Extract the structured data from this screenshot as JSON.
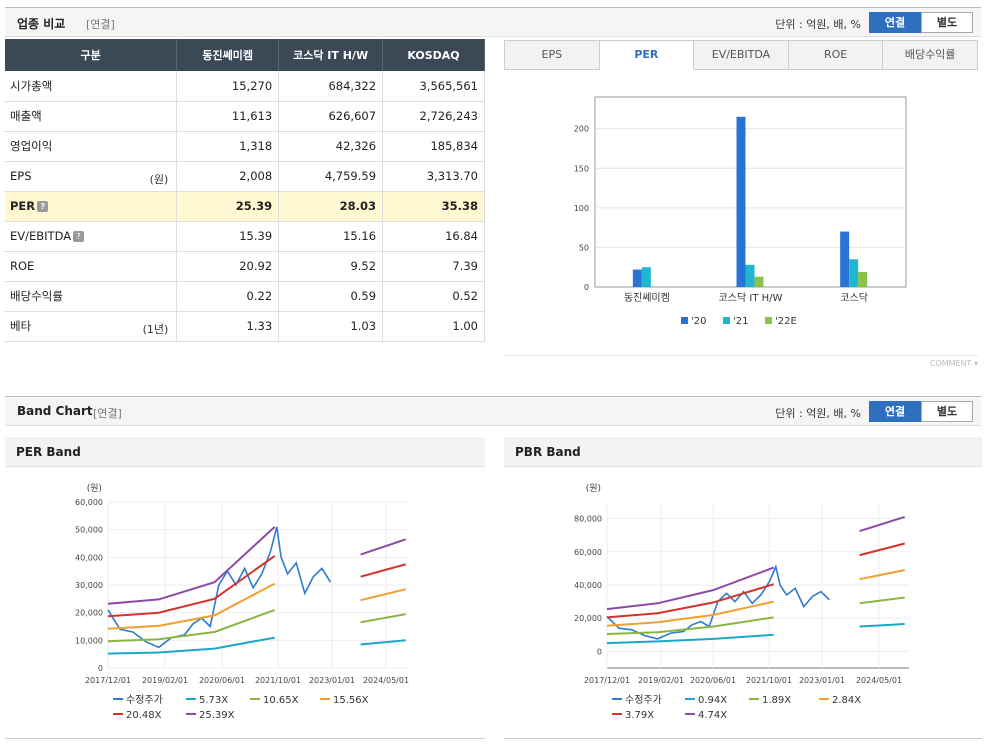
{
  "top": {
    "title": "업종 비교",
    "subtitle": "[연결]",
    "unit": "단위 : 억원, 배, %",
    "toggle": [
      "연결",
      "별도"
    ]
  },
  "table": {
    "headers": [
      "구분",
      "동진쎄미켐",
      "코스닥 IT H/W",
      "KOSDAQ"
    ],
    "rows": [
      {
        "label": "시가총액",
        "unit": "",
        "q": false,
        "hl": false,
        "vals": [
          "15,270",
          "684,322",
          "3,565,561"
        ]
      },
      {
        "label": "매출액",
        "unit": "",
        "q": false,
        "hl": false,
        "vals": [
          "11,613",
          "626,607",
          "2,726,243"
        ]
      },
      {
        "label": "영업이익",
        "unit": "",
        "q": false,
        "hl": false,
        "vals": [
          "1,318",
          "42,326",
          "185,834"
        ]
      },
      {
        "label": "EPS",
        "unit": "(원)",
        "q": false,
        "hl": false,
        "vals": [
          "2,008",
          "4,759.59",
          "3,313.70"
        ]
      },
      {
        "label": "PER",
        "unit": "",
        "q": true,
        "hl": true,
        "vals": [
          "25.39",
          "28.03",
          "35.38"
        ]
      },
      {
        "label": "EV/EBITDA",
        "unit": "",
        "q": true,
        "hl": false,
        "vals": [
          "15.39",
          "15.16",
          "16.84"
        ]
      },
      {
        "label": "ROE",
        "unit": "",
        "q": false,
        "hl": false,
        "vals": [
          "20.92",
          "9.52",
          "7.39"
        ]
      },
      {
        "label": "배당수익률",
        "unit": "",
        "q": false,
        "hl": false,
        "vals": [
          "0.22",
          "0.59",
          "0.52"
        ]
      },
      {
        "label": "베타",
        "unit": "(1년)",
        "q": false,
        "hl": false,
        "vals": [
          "1.33",
          "1.03",
          "1.00"
        ]
      }
    ]
  },
  "tabs": [
    "EPS",
    "PER",
    "EV/EBITDA",
    "ROE",
    "배당수익률"
  ],
  "active_tab": "PER",
  "comment_label": "COMMENT",
  "band": {
    "title": "Band Chart",
    "subtitle": "[연결]",
    "unit": "단위 : 억원, 배, %",
    "toggle": [
      "연결",
      "별도"
    ],
    "per_title": "PER Band",
    "pbr_title": "PBR Band"
  },
  "colors": {
    "accent": "#2e6fbf",
    "bar20": "#2a73d6",
    "bar21": "#1fb7cf",
    "bar22": "#8bc34a",
    "price": "#2e7bd0",
    "b1": "#1aa8c8",
    "b2": "#8ab545",
    "b3": "#f0a030",
    "b4": "#d0342c",
    "b5": "#8e4aa8"
  },
  "chart_data": [
    {
      "type": "bar",
      "categories": [
        "동진쎄미켐",
        "코스닥 IT H/W",
        "코스닥"
      ],
      "series": [
        {
          "name": "'20",
          "values": [
            22,
            215,
            70
          ]
        },
        {
          "name": "'21",
          "values": [
            25,
            28,
            35
          ]
        },
        {
          "name": "'22E",
          "values": [
            0,
            13,
            19
          ]
        }
      ],
      "ylim": [
        0,
        240
      ],
      "yticks": [
        0,
        50,
        100,
        150,
        200
      ],
      "grid": true,
      "legend": "bottom"
    },
    {
      "type": "line",
      "title": "PER Band",
      "ylabel": "(원)",
      "ylim": [
        0,
        60000
      ],
      "yticks": [
        "0",
        "10,000",
        "20,000",
        "30,000",
        "40,000",
        "50,000",
        "60,000"
      ],
      "xticks": [
        "2017/12/01",
        "2019/02/01",
        "2020/06/01",
        "2021/10/01",
        "2023/01/01",
        "2024/05/01"
      ],
      "legend": [
        "수정주가",
        "5.73X",
        "10.65X",
        "15.56X",
        "20.48X",
        "25.39X"
      ],
      "series": [
        {
          "name": "수정주가",
          "x": [
            2017.92,
            2018.2,
            2018.5,
            2018.8,
            2019.1,
            2019.4,
            2019.7,
            2019.9,
            2020.1,
            2020.3,
            2020.5,
            2020.7,
            2020.9,
            2021.1,
            2021.3,
            2021.5,
            2021.7,
            2021.85,
            2021.95,
            2022.1,
            2022.3,
            2022.5,
            2022.7,
            2022.9,
            2023.1
          ],
          "values": [
            21000,
            14000,
            13000,
            9500,
            7500,
            11000,
            12000,
            16000,
            18000,
            15000,
            30000,
            35000,
            30000,
            36000,
            29000,
            34000,
            42000,
            51000,
            40000,
            34000,
            38000,
            27000,
            33000,
            36000,
            31000
          ]
        },
        {
          "name": "5.73X",
          "x": [
            2017.92,
            2019.1,
            2020.4,
            2021.8
          ],
          "values": [
            5200,
            5600,
            7000,
            11000
          ],
          "future_x": [
            2023.8,
            2024.85
          ],
          "future_values": [
            8500,
            10000
          ]
        },
        {
          "name": "10.65X",
          "x": [
            2017.92,
            2019.1,
            2020.4,
            2021.8
          ],
          "values": [
            9700,
            10400,
            13000,
            21000
          ],
          "future_x": [
            2023.8,
            2024.85
          ],
          "future_values": [
            16500,
            19500
          ]
        },
        {
          "name": "15.56X",
          "x": [
            2017.92,
            2019.1,
            2020.4,
            2021.8
          ],
          "values": [
            14200,
            15200,
            19000,
            30500
          ],
          "future_x": [
            2023.8,
            2024.85
          ],
          "future_values": [
            24500,
            28500
          ]
        },
        {
          "name": "20.48X",
          "x": [
            2017.92,
            2019.1,
            2020.4,
            2021.8
          ],
          "values": [
            18700,
            20000,
            25000,
            40500
          ],
          "future_x": [
            2023.8,
            2024.85
          ],
          "future_values": [
            33000,
            37500
          ]
        },
        {
          "name": "25.39X",
          "x": [
            2017.92,
            2019.1,
            2020.4,
            2021.8
          ],
          "values": [
            23200,
            24800,
            31000,
            51000
          ],
          "future_x": [
            2023.8,
            2024.85
          ],
          "future_values": [
            41000,
            46500
          ]
        }
      ]
    },
    {
      "type": "line",
      "title": "PBR Band",
      "ylabel": "(원)",
      "ylim": [
        -10000,
        90000
      ],
      "yticks": [
        "0",
        "20,000",
        "40,000",
        "60,000",
        "80,000"
      ],
      "xticks": [
        "2017/12/01",
        "2019/02/01",
        "2020/06/01",
        "2021/10/01",
        "2023/01/01",
        "2024/05/01"
      ],
      "legend": [
        "수정주가",
        "0.94X",
        "1.89X",
        "2.84X",
        "3.79X",
        "4.74X"
      ],
      "series": [
        {
          "name": "수정주가",
          "x": [
            2017.92,
            2018.2,
            2018.5,
            2018.8,
            2019.1,
            2019.4,
            2019.7,
            2019.9,
            2020.1,
            2020.3,
            2020.5,
            2020.7,
            2020.9,
            2021.1,
            2021.3,
            2021.5,
            2021.7,
            2021.85,
            2021.95,
            2022.1,
            2022.3,
            2022.5,
            2022.7,
            2022.9,
            2023.1
          ],
          "values": [
            21000,
            14000,
            13000,
            9500,
            7500,
            11000,
            12000,
            16000,
            18000,
            15000,
            30000,
            35000,
            30000,
            36000,
            29000,
            34000,
            42000,
            51000,
            40000,
            34000,
            38000,
            27000,
            33000,
            36000,
            31000
          ]
        },
        {
          "name": "0.94X",
          "x": [
            2017.92,
            2019.1,
            2020.4,
            2021.8
          ],
          "values": [
            5000,
            6000,
            7500,
            10000
          ],
          "future_x": [
            2023.8,
            2024.85
          ],
          "future_values": [
            15000,
            16500
          ]
        },
        {
          "name": "1.89X",
          "x": [
            2017.92,
            2019.1,
            2020.4,
            2021.8
          ],
          "values": [
            10500,
            11500,
            15000,
            20500
          ],
          "future_x": [
            2023.8,
            2024.85
          ],
          "future_values": [
            29000,
            32500
          ]
        },
        {
          "name": "2.84X",
          "x": [
            2017.92,
            2019.1,
            2020.4,
            2021.8
          ],
          "values": [
            15500,
            17500,
            22000,
            30000
          ],
          "future_x": [
            2023.8,
            2024.85
          ],
          "future_values": [
            43500,
            49000
          ]
        },
        {
          "name": "3.79X",
          "x": [
            2017.92,
            2019.1,
            2020.4,
            2021.8
          ],
          "values": [
            20500,
            23000,
            29500,
            40500
          ],
          "future_x": [
            2023.8,
            2024.85
          ],
          "future_values": [
            58000,
            65000
          ]
        },
        {
          "name": "4.74X",
          "x": [
            2017.92,
            2019.1,
            2020.4,
            2021.8
          ],
          "values": [
            25500,
            29000,
            37000,
            50500
          ],
          "future_x": [
            2023.8,
            2024.85
          ],
          "future_values": [
            72500,
            81000
          ]
        }
      ]
    }
  ]
}
